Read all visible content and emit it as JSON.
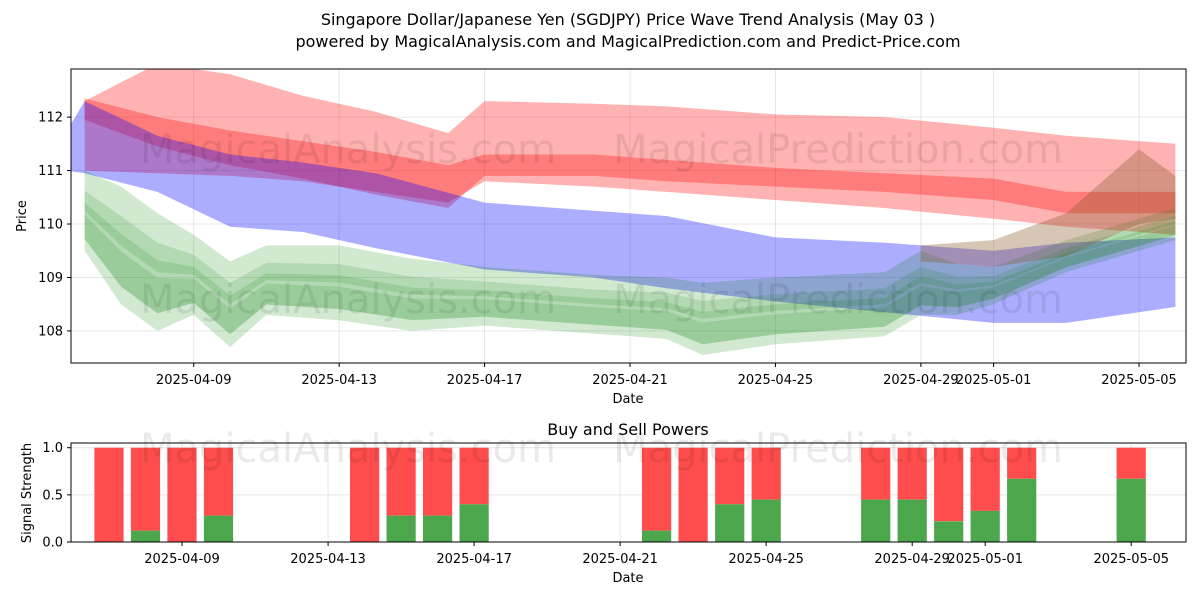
{
  "figure": {
    "title_line1": "Singapore Dollar/Japanese Yen (SGDJPY) Price Wave Trend Analysis (May 03 )",
    "title_line2": "powered by MagicalAnalysis.com and MagicalPrediction.com and Predict-Price.com",
    "watermarks": [
      "MagicalAnalysis.com",
      "MagicalPrediction.com"
    ]
  },
  "chart_data": [
    {
      "type": "area",
      "xlabel": "Date",
      "ylabel": "Price",
      "xlim": [
        "2025-04-05 15:00",
        "2025-05-06 07:00"
      ],
      "ylim": [
        107.4,
        112.9
      ],
      "x_ticks": [
        "2025-04-09",
        "2025-04-13",
        "2025-04-17",
        "2025-04-21",
        "2025-04-25",
        "2025-04-29",
        "2025-05-01",
        "2025-05-05"
      ],
      "y_ticks": [
        108,
        109,
        110,
        111,
        112
      ],
      "grid": true,
      "colors": {
        "red_band": "#ff0000",
        "blue_band": "#0000ff",
        "green_band": "#008000",
        "brown_band": "#8b5a2b"
      },
      "series": [
        {
          "color": "red",
          "x": [
            "2025-04-06",
            "2025-04-08",
            "2025-04-10",
            "2025-04-12",
            "2025-04-14",
            "2025-04-16",
            "2025-04-17",
            "2025-04-20",
            "2025-04-22",
            "2025-04-25",
            "2025-04-28",
            "2025-05-01",
            "2025-05-03",
            "2025-05-06"
          ],
          "upper": [
            112.3,
            113.0,
            112.8,
            112.4,
            112.1,
            111.7,
            112.3,
            112.25,
            112.2,
            112.05,
            112.0,
            111.8,
            111.65,
            111.5
          ],
          "lower": [
            111.0,
            110.95,
            110.9,
            110.8,
            110.6,
            110.4,
            110.8,
            110.7,
            110.6,
            110.45,
            110.3,
            110.1,
            109.95,
            109.8
          ]
        },
        {
          "color": "red",
          "x": [
            "2025-04-06",
            "2025-04-08",
            "2025-04-10",
            "2025-04-12",
            "2025-04-14",
            "2025-04-16",
            "2025-04-17",
            "2025-04-20",
            "2025-04-22",
            "2025-04-25",
            "2025-04-28",
            "2025-05-01",
            "2025-05-03",
            "2025-05-06"
          ],
          "upper": [
            112.35,
            112.0,
            111.75,
            111.55,
            111.35,
            111.1,
            111.3,
            111.3,
            111.2,
            111.05,
            110.95,
            110.85,
            110.6,
            110.6
          ],
          "lower": [
            111.95,
            111.45,
            111.1,
            110.85,
            110.55,
            110.3,
            110.9,
            110.9,
            110.8,
            110.7,
            110.6,
            110.45,
            110.2,
            110.2
          ]
        },
        {
          "color": "blue",
          "x": [
            "2025-04-05",
            "2025-04-06",
            "2025-04-08",
            "2025-04-10",
            "2025-04-12",
            "2025-04-14",
            "2025-04-17",
            "2025-04-20",
            "2025-04-22",
            "2025-04-25",
            "2025-04-28",
            "2025-05-01",
            "2025-05-03",
            "2025-05-06"
          ],
          "upper": [
            111.15,
            112.3,
            111.65,
            111.3,
            111.15,
            110.95,
            110.4,
            110.25,
            110.15,
            109.75,
            109.65,
            109.5,
            109.65,
            109.75
          ],
          "lower": [
            111.05,
            110.95,
            110.6,
            109.95,
            109.85,
            109.55,
            109.15,
            109.0,
            108.8,
            108.55,
            108.35,
            108.15,
            108.15,
            108.45
          ]
        },
        {
          "color": "green",
          "x": [
            "2025-04-06",
            "2025-04-07",
            "2025-04-08",
            "2025-04-09",
            "2025-04-10",
            "2025-04-11",
            "2025-04-13",
            "2025-04-15",
            "2025-04-17",
            "2025-04-20",
            "2025-04-22",
            "2025-04-23",
            "2025-04-25",
            "2025-04-28",
            "2025-04-29",
            "2025-04-30",
            "2025-05-01",
            "2025-05-03",
            "2025-05-06"
          ],
          "upper": [
            111.0,
            110.7,
            110.2,
            109.8,
            109.3,
            109.6,
            109.6,
            109.35,
            109.2,
            109.05,
            109.0,
            108.9,
            109.0,
            109.1,
            109.5,
            109.25,
            109.2,
            109.7,
            110.3
          ],
          "lower": [
            109.5,
            108.5,
            108.0,
            108.3,
            107.7,
            108.3,
            108.2,
            108.0,
            108.1,
            107.95,
            107.85,
            107.55,
            107.75,
            107.9,
            108.3,
            108.3,
            108.5,
            109.1,
            109.7
          ]
        },
        {
          "color": "brown",
          "x": [
            "2025-04-29",
            "2025-05-01",
            "2025-05-03",
            "2025-05-05",
            "2025-05-06"
          ],
          "upper": [
            109.6,
            109.7,
            110.2,
            111.4,
            110.9
          ],
          "lower": [
            109.3,
            109.2,
            109.4,
            110.0,
            110.1
          ]
        }
      ]
    },
    {
      "type": "bar",
      "title": "Buy and Sell Powers",
      "xlabel": "Date",
      "ylabel": "Signal Strength",
      "ylim": [
        0,
        1.05
      ],
      "y_ticks": [
        "0.0",
        "0.5",
        "1.0"
      ],
      "x_ticks": [
        "2025-04-09",
        "2025-04-13",
        "2025-04-17",
        "2025-04-21",
        "2025-04-25",
        "2025-04-29",
        "2025-05-01",
        "2025-05-05"
      ],
      "grid": true,
      "colors": {
        "buy": "#4ca64c",
        "sell": "#ff4d4d"
      },
      "categories": [
        "2025-04-07",
        "2025-04-08",
        "2025-04-09",
        "2025-04-10",
        "2025-04-14",
        "2025-04-15",
        "2025-04-16",
        "2025-04-17",
        "2025-04-22",
        "2025-04-23",
        "2025-04-24",
        "2025-04-25",
        "2025-04-28",
        "2025-04-29",
        "2025-04-30",
        "2025-05-01",
        "2025-05-02",
        "2025-05-05"
      ],
      "series": [
        {
          "values": [
            0.0,
            0.12,
            0.0,
            0.28,
            0.0,
            0.28,
            0.28,
            0.4,
            0.12,
            0.0,
            0.4,
            0.45,
            0.45,
            0.45,
            0.22,
            0.33,
            0.67,
            0.67
          ]
        },
        {
          "values": [
            1.0,
            0.88,
            1.0,
            0.72,
            1.0,
            0.72,
            0.72,
            0.6,
            0.88,
            1.0,
            0.6,
            0.55,
            0.55,
            0.55,
            0.78,
            0.67,
            0.33,
            0.33
          ]
        }
      ]
    }
  ]
}
